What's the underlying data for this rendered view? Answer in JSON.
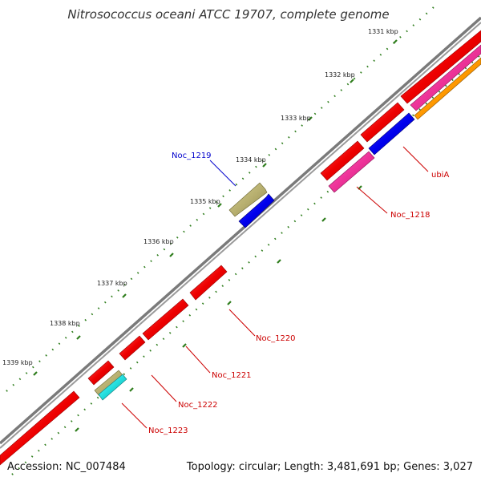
{
  "header": {
    "title": "Nitrosococcus oceani ATCC 19707, complete genome"
  },
  "footer": {
    "accession": "Accession: NC_007484",
    "summary": "Topology: circular; Length: 3,481,691 bp; Genes: 3,027"
  },
  "kbp_labels": [
    {
      "id": "1331",
      "text": "1331 kbp"
    },
    {
      "id": "1332",
      "text": "1332 kbp"
    },
    {
      "id": "1333",
      "text": "1333 kbp"
    },
    {
      "id": "1334",
      "text": "1334 kbp"
    },
    {
      "id": "1335",
      "text": "1335 kbp"
    },
    {
      "id": "1336",
      "text": "1336 kbp"
    },
    {
      "id": "1337",
      "text": "1337 kbp"
    },
    {
      "id": "1338",
      "text": "1338 kbp"
    },
    {
      "id": "1339",
      "text": "1339 kbp"
    }
  ],
  "gene_labels": [
    {
      "id": "noc-1219",
      "text": "Noc_1219",
      "color": "#0000cc"
    },
    {
      "id": "ubia",
      "text": "ubiA",
      "color": "#cc0000"
    },
    {
      "id": "noc-1218",
      "text": "Noc_1218",
      "color": "#cc0000"
    },
    {
      "id": "noc-1220",
      "text": "Noc_1220",
      "color": "#cc0000"
    },
    {
      "id": "noc-1221",
      "text": "Noc_1221",
      "color": "#cc0000"
    },
    {
      "id": "noc-1222",
      "text": "Noc_1222",
      "color": "#cc0000"
    },
    {
      "id": "noc-1223",
      "text": "Noc_1223",
      "color": "#cc0000"
    }
  ],
  "colors": {
    "backbone": "#7a7a7a",
    "tick": "#2e7d1c",
    "cds_red": "#ee0000",
    "cds_blue": "#0000ee",
    "cds_khaki": "#b8b070",
    "cds_pink": "#ee3399",
    "cds_cyan": "#22dddd",
    "cds_orange": "#ff9900"
  }
}
